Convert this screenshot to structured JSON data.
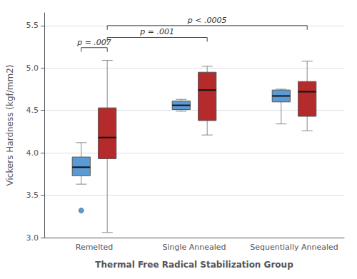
{
  "chart_data": {
    "type": "boxplot",
    "xlabel": "Thermal Free Radical Stabilization Group",
    "ylabel": "Vickers Hardness (kgf/mm2)",
    "categories": [
      "Remelted",
      "Single Annealed",
      "Sequentially Annealed"
    ],
    "series": [
      {
        "color": "#5b9bd5",
        "values": [
          [
            3.63,
            3.73,
            3.83,
            3.95,
            4.12
          ],
          [
            4.49,
            4.51,
            4.56,
            4.61,
            4.63
          ],
          [
            4.34,
            4.6,
            4.67,
            4.74,
            4.75
          ]
        ],
        "outliers": [
          3.32,
          null,
          null
        ]
      },
      {
        "color": "#b52a2a",
        "values": [
          [
            3.06,
            3.93,
            4.18,
            4.53,
            5.09
          ],
          [
            4.21,
            4.38,
            4.74,
            4.95,
            5.02
          ],
          [
            4.26,
            4.43,
            4.72,
            4.84,
            5.08
          ]
        ],
        "outliers": [
          null,
          null,
          null
        ]
      }
    ],
    "ylim": [
      3.0,
      5.65
    ],
    "yticks": [
      {
        "value": 3,
        "label": "3.0"
      },
      3.5,
      {
        "value": 4,
        "label": "4.0"
      },
      4.5,
      {
        "value": 5,
        "label": "5.0"
      },
      5.5
    ],
    "grid": true,
    "annotations": [
      {
        "text": "p = .007",
        "y": 5.24,
        "from": {
          "category": "Remelted",
          "series": 0
        },
        "to": {
          "category": "Remelted",
          "series": 1
        }
      },
      {
        "text": "p = .001",
        "y": 5.36,
        "from": {
          "category": "Remelted",
          "series": 1
        },
        "to": {
          "category": "Single Annealed",
          "series": 1
        }
      },
      {
        "text": "p < .0005",
        "y": 5.5,
        "from": {
          "category": "Remelted",
          "series": 1
        },
        "to": {
          "category": "Sequentially Annealed",
          "series": 1
        }
      }
    ]
  }
}
